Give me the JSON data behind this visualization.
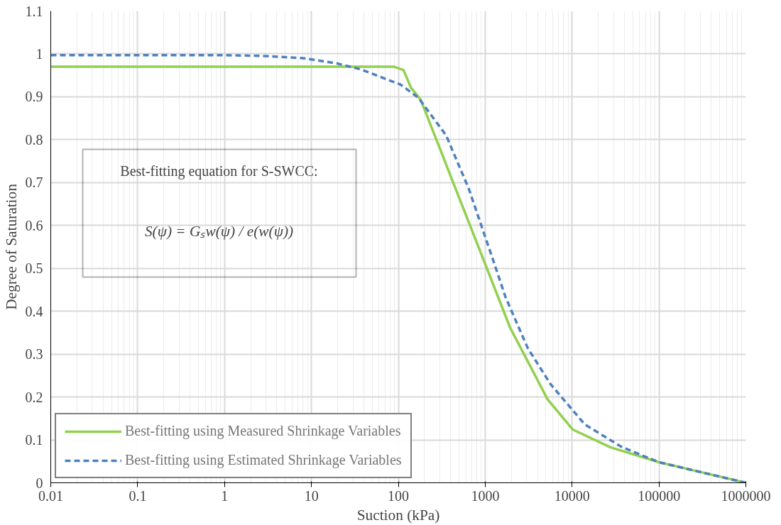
{
  "chart_data": {
    "type": "line",
    "xlabel": "Suction (kPa)",
    "ylabel": "Degree of Saturation",
    "log": "x",
    "grid": true,
    "legend": "bottom left",
    "marker": "none",
    "xlim": [
      0.01,
      1000000
    ],
    "xticks": [
      0.01,
      0.1,
      1,
      10,
      100,
      1000,
      10000,
      100000,
      1000000
    ],
    "ylim": [
      0,
      1.1
    ],
    "yticks": [
      0,
      0.1,
      0.2,
      0.3,
      0.4,
      0.5,
      0.6,
      0.7,
      0.8,
      0.9,
      1,
      1.1
    ],
    "annotations": [
      "Best-fitting equation for S-SWCC:",
      "S(ψ) = Gₛw(ψ) / e(w(ψ))"
    ],
    "series": [
      {
        "name": "Best-fitting using Measured Shrinkage Variables",
        "color": "#92d050",
        "line_style": "solid",
        "x": [
          0.01,
          1,
          10,
          90,
          115,
          140,
          181,
          300,
          500,
          1000,
          1941,
          3000,
          5210,
          10200,
          27500,
          100000,
          1000000
        ],
        "values": [
          0.97,
          0.97,
          0.97,
          0.97,
          0.962,
          0.921,
          0.893,
          0.78,
          0.665,
          0.51,
          0.361,
          0.288,
          0.195,
          0.124,
          0.083,
          0.048,
          0
        ]
      },
      {
        "name": "Best-fitting using Estimated Shrinkage Variables",
        "color": "#4f81bd",
        "line_style": "dashed",
        "x": [
          0.01,
          1,
          3,
          8,
          19.5,
          37,
          107,
          170,
          355,
          646,
          1230,
          1720,
          3090,
          5650,
          14000,
          37600,
          100000,
          1000000
        ],
        "values": [
          0.997,
          0.997,
          0.995,
          0.99,
          0.978,
          0.964,
          0.928,
          0.898,
          0.81,
          0.686,
          0.52,
          0.432,
          0.314,
          0.23,
          0.136,
          0.083,
          0.048,
          0
        ]
      }
    ]
  }
}
